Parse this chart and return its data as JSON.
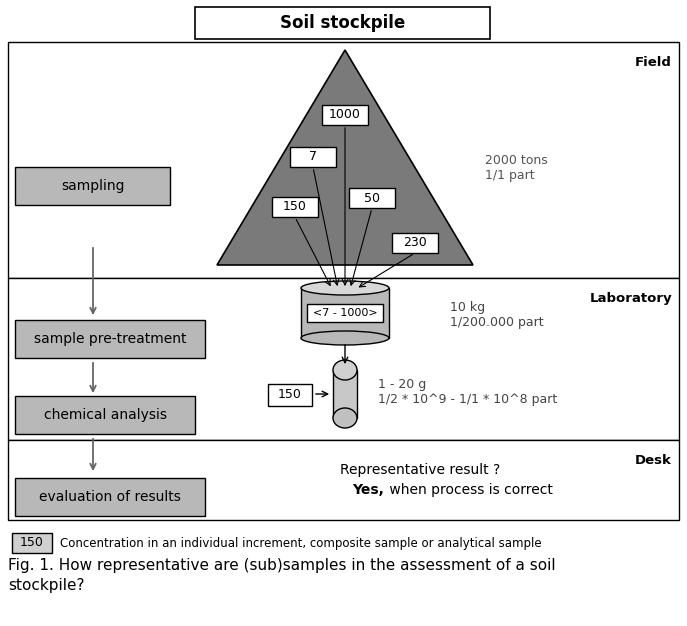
{
  "title": "Soil stockpile",
  "field_label": "Field",
  "lab_label": "Laboratory",
  "desk_label": "Desk",
  "field_text_right": "2000 tons\n1/1 part",
  "lab_text_right": "10 kg\n1/200.000 part",
  "lab_text_right2": "1 - 20 g\n1/2 * 10^9 - 1/1 * 10^8 part",
  "box_labels": [
    "sampling",
    "sample pre-treatment",
    "chemical analysis",
    "evaluation of results"
  ],
  "cylinder_label": "<7 - 1000>",
  "small_box_label": "150",
  "legend_box_label": "150",
  "legend_text": "Concentration in an individual increment, composite sample or analytical sample",
  "caption": "Fig. 1. How representative are (sub)samples in the assessment of a soil\nstockpile?",
  "yes_bold": "Yes,",
  "yes_rest": " when process is correct",
  "desk_line1": "Representative result ?",
  "bg_color": "#ffffff",
  "triangle_color": "#808080",
  "box_color": "#b8b8b8",
  "border_color": "#000000"
}
